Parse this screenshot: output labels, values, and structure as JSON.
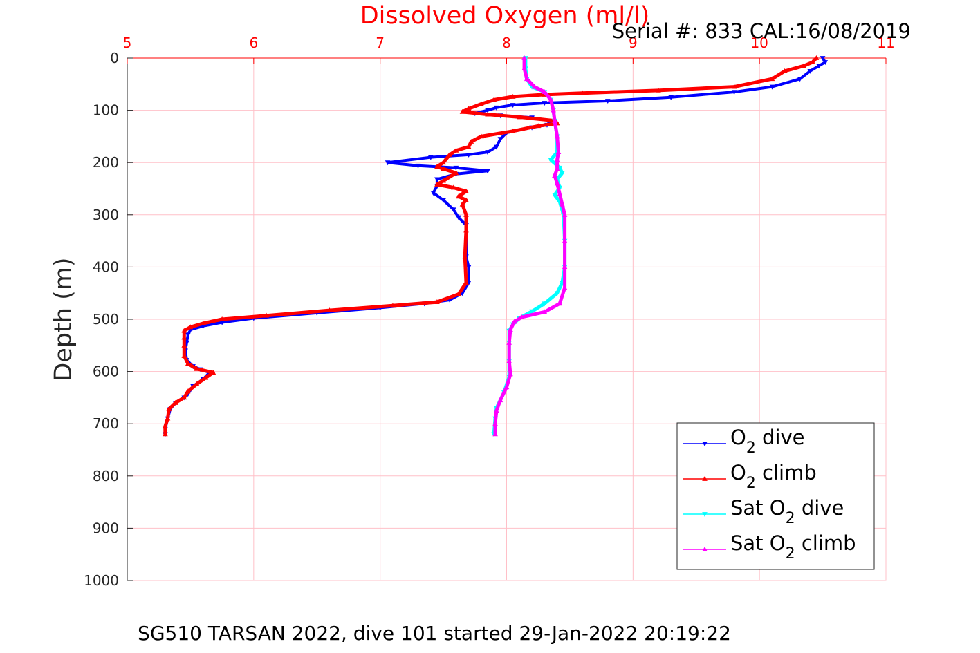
{
  "chart_data": {
    "type": "line",
    "title": "Dissolved Oxygen (ml/l)",
    "serial_text": "Serial #: 833  CAL:16/08/2019",
    "caption": "SG510 TARSAN 2022, dive 101 started 29-Jan-2022 20:19:22",
    "xlabel": "Dissolved Oxygen (ml/l)",
    "ylabel": "Depth (m)",
    "xlim": [
      5,
      11
    ],
    "ylim": [
      0,
      1000
    ],
    "y_reversed": true,
    "x_axis_position": "top",
    "x_ticks": [
      "5",
      "6",
      "7",
      "8",
      "9",
      "10",
      "11"
    ],
    "y_ticks": [
      "0",
      "100",
      "200",
      "300",
      "400",
      "500",
      "600",
      "700",
      "800",
      "900",
      "1000"
    ],
    "grid": true,
    "legend_position": "bottom-right",
    "colors": {
      "title": "#ff0000",
      "x_ticks": "#ff0000",
      "grid": "#ffc0c8",
      "o2_dive": "#0000ff",
      "o2_climb": "#ff0000",
      "sat_dive": "#00ffff",
      "sat_climb": "#ff00ff"
    },
    "legend": {
      "o2_dive": {
        "pre": "O",
        "sub": "2",
        "post": " dive"
      },
      "o2_climb": {
        "pre": "O",
        "sub": "2",
        "post": " climb"
      },
      "sat_dive": {
        "pre": "Sat O",
        "sub": "2",
        "post": " dive"
      },
      "sat_climb": {
        "pre": "Sat O",
        "sub": "2",
        "post": " climb"
      }
    },
    "series": [
      {
        "name": "O2 dive",
        "key": "o2_dive",
        "marker": "triangle-down",
        "points": [
          [
            10.5,
            0
          ],
          [
            10.52,
            8
          ],
          [
            10.47,
            15
          ],
          [
            10.4,
            25
          ],
          [
            10.32,
            40
          ],
          [
            10.1,
            55
          ],
          [
            9.8,
            65
          ],
          [
            9.3,
            75
          ],
          [
            8.8,
            82
          ],
          [
            8.3,
            86
          ],
          [
            8.05,
            90
          ],
          [
            7.92,
            95
          ],
          [
            7.85,
            100
          ],
          [
            7.75,
            106
          ],
          [
            7.95,
            110
          ],
          [
            8.2,
            114
          ],
          [
            8.35,
            120
          ],
          [
            8.32,
            128
          ],
          [
            8.2,
            133
          ],
          [
            8.0,
            143
          ],
          [
            7.95,
            155
          ],
          [
            7.92,
            170
          ],
          [
            7.85,
            180
          ],
          [
            7.7,
            185
          ],
          [
            7.4,
            190
          ],
          [
            7.06,
            200
          ],
          [
            7.3,
            206
          ],
          [
            7.6,
            210
          ],
          [
            7.85,
            216
          ],
          [
            7.6,
            222
          ],
          [
            7.45,
            232
          ],
          [
            7.45,
            245
          ],
          [
            7.42,
            258
          ],
          [
            7.5,
            272
          ],
          [
            7.58,
            290
          ],
          [
            7.62,
            305
          ],
          [
            7.68,
            320
          ],
          [
            7.68,
            380
          ],
          [
            7.7,
            400
          ],
          [
            7.7,
            430
          ],
          [
            7.65,
            450
          ],
          [
            7.55,
            463
          ],
          [
            7.35,
            470
          ],
          [
            7.0,
            478
          ],
          [
            6.5,
            488
          ],
          [
            6.0,
            498
          ],
          [
            5.75,
            506
          ],
          [
            5.6,
            513
          ],
          [
            5.5,
            520
          ],
          [
            5.48,
            530
          ],
          [
            5.47,
            545
          ],
          [
            5.46,
            560
          ],
          [
            5.47,
            578
          ],
          [
            5.52,
            590
          ],
          [
            5.58,
            596
          ],
          [
            5.65,
            602
          ],
          [
            5.6,
            615
          ],
          [
            5.52,
            628
          ],
          [
            5.48,
            643
          ],
          [
            5.45,
            650
          ],
          [
            5.38,
            660
          ],
          [
            5.34,
            672
          ],
          [
            5.32,
            690
          ],
          [
            5.3,
            710
          ],
          [
            5.3,
            720
          ]
        ]
      },
      {
        "name": "O2 climb",
        "key": "o2_climb",
        "marker": "triangle-up",
        "points": [
          [
            10.45,
            0
          ],
          [
            10.42,
            8
          ],
          [
            10.35,
            15
          ],
          [
            10.2,
            25
          ],
          [
            10.1,
            40
          ],
          [
            9.8,
            55
          ],
          [
            9.2,
            62
          ],
          [
            8.6,
            67
          ],
          [
            8.3,
            70
          ],
          [
            8.05,
            74
          ],
          [
            7.9,
            80
          ],
          [
            7.8,
            88
          ],
          [
            7.7,
            97
          ],
          [
            7.65,
            103
          ],
          [
            7.85,
            108
          ],
          [
            8.1,
            113
          ],
          [
            8.38,
            120
          ],
          [
            8.4,
            125
          ],
          [
            8.25,
            130
          ],
          [
            8.05,
            140
          ],
          [
            7.8,
            150
          ],
          [
            7.72,
            160
          ],
          [
            7.7,
            170
          ],
          [
            7.6,
            177
          ],
          [
            7.55,
            185
          ],
          [
            7.5,
            200
          ],
          [
            7.45,
            208
          ],
          [
            7.5,
            212
          ],
          [
            7.6,
            220
          ],
          [
            7.5,
            235
          ],
          [
            7.45,
            242
          ],
          [
            7.58,
            248
          ],
          [
            7.68,
            255
          ],
          [
            7.62,
            265
          ],
          [
            7.68,
            272
          ],
          [
            7.65,
            280
          ],
          [
            7.68,
            300
          ],
          [
            7.68,
            330
          ],
          [
            7.67,
            380
          ],
          [
            7.68,
            430
          ],
          [
            7.62,
            452
          ],
          [
            7.45,
            467
          ],
          [
            7.1,
            474
          ],
          [
            6.6,
            483
          ],
          [
            6.1,
            493
          ],
          [
            5.75,
            500
          ],
          [
            5.6,
            508
          ],
          [
            5.5,
            515
          ],
          [
            5.45,
            522
          ],
          [
            5.45,
            535
          ],
          [
            5.45,
            550
          ],
          [
            5.45,
            570
          ],
          [
            5.48,
            585
          ],
          [
            5.55,
            595
          ],
          [
            5.68,
            602
          ],
          [
            5.62,
            612
          ],
          [
            5.55,
            624
          ],
          [
            5.48,
            638
          ],
          [
            5.45,
            650
          ],
          [
            5.38,
            660
          ],
          [
            5.33,
            672
          ],
          [
            5.32,
            690
          ],
          [
            5.3,
            705
          ],
          [
            5.3,
            720
          ]
        ]
      },
      {
        "name": "Sat O2 dive",
        "key": "sat_dive",
        "marker": "triangle-down",
        "points": [
          [
            8.15,
            0
          ],
          [
            8.15,
            20
          ],
          [
            8.16,
            40
          ],
          [
            8.2,
            55
          ],
          [
            8.3,
            65
          ],
          [
            8.35,
            80
          ],
          [
            8.37,
            100
          ],
          [
            8.38,
            120
          ],
          [
            8.4,
            150
          ],
          [
            8.4,
            180
          ],
          [
            8.35,
            195
          ],
          [
            8.42,
            210
          ],
          [
            8.44,
            220
          ],
          [
            8.4,
            232
          ],
          [
            8.42,
            248
          ],
          [
            8.38,
            262
          ],
          [
            8.42,
            275
          ],
          [
            8.45,
            300
          ],
          [
            8.46,
            350
          ],
          [
            8.46,
            400
          ],
          [
            8.44,
            430
          ],
          [
            8.4,
            450
          ],
          [
            8.3,
            470
          ],
          [
            8.2,
            485
          ],
          [
            8.1,
            498
          ],
          [
            8.05,
            510
          ],
          [
            8.02,
            522
          ],
          [
            8.02,
            545
          ],
          [
            8.02,
            580
          ],
          [
            8.02,
            610
          ],
          [
            7.98,
            640
          ],
          [
            7.92,
            670
          ],
          [
            7.91,
            690
          ],
          [
            7.9,
            720
          ]
        ]
      },
      {
        "name": "Sat O2 climb",
        "key": "sat_climb",
        "marker": "triangle-up",
        "points": [
          [
            8.14,
            0
          ],
          [
            8.14,
            20
          ],
          [
            8.16,
            40
          ],
          [
            8.22,
            55
          ],
          [
            8.3,
            65
          ],
          [
            8.35,
            80
          ],
          [
            8.37,
            100
          ],
          [
            8.38,
            120
          ],
          [
            8.4,
            150
          ],
          [
            8.41,
            180
          ],
          [
            8.4,
            195
          ],
          [
            8.4,
            212
          ],
          [
            8.38,
            225
          ],
          [
            8.4,
            240
          ],
          [
            8.42,
            260
          ],
          [
            8.44,
            280
          ],
          [
            8.46,
            300
          ],
          [
            8.46,
            350
          ],
          [
            8.46,
            400
          ],
          [
            8.46,
            440
          ],
          [
            8.42,
            470
          ],
          [
            8.3,
            486
          ],
          [
            8.12,
            496
          ],
          [
            8.06,
            505
          ],
          [
            8.03,
            520
          ],
          [
            8.02,
            545
          ],
          [
            8.02,
            580
          ],
          [
            8.03,
            605
          ],
          [
            8.0,
            630
          ],
          [
            7.95,
            655
          ],
          [
            7.92,
            675
          ],
          [
            7.91,
            700
          ],
          [
            7.91,
            720
          ]
        ]
      }
    ]
  }
}
